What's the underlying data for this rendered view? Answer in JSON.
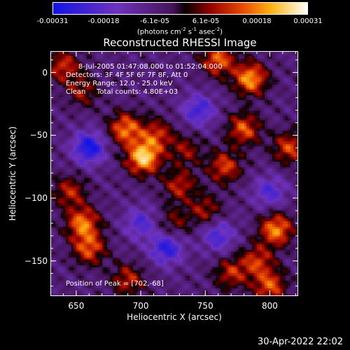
{
  "colorbar": {
    "ticks": [
      "-0.00031",
      "-0.00018",
      "-6.1e-05",
      "6.1e-05",
      "0.00018",
      "0.00031"
    ],
    "units": {
      "base": "(photons cm",
      "exp1": "-2",
      "mid": " s",
      "exp2": "-1",
      "mid2": " asec",
      "exp3": "-2",
      "end": ")"
    }
  },
  "chart_data": {
    "type": "heatmap",
    "title": "Reconstructed RHESSI Image",
    "xlabel": "Heliocentric X (arcsec)",
    "ylabel": "Heliocentric Y (arcsec)",
    "xlim": [
      630,
      822
    ],
    "ylim": [
      -178,
      17
    ],
    "x_ticks": [
      650,
      700,
      750,
      800
    ],
    "y_ticks": [
      0,
      -50,
      -100,
      -150
    ],
    "x_tick_labels": [
      "650",
      "700",
      "750",
      "800"
    ],
    "y_tick_labels": [
      "0",
      "−50",
      "−100",
      "−150"
    ],
    "color_range": [
      -0.00031,
      0.00031
    ],
    "colormap": "blue-purple-black-red-yellow-white",
    "peak": [
      702,
      -68
    ],
    "sources": [
      {
        "x": 702,
        "y": -68,
        "amp": 1.0
      },
      {
        "x": 688,
        "y": -45,
        "amp": 0.75
      },
      {
        "x": 712,
        "y": -50,
        "amp": 0.55
      },
      {
        "x": 655,
        "y": -120,
        "amp": 0.75
      },
      {
        "x": 645,
        "y": -95,
        "amp": 0.5
      },
      {
        "x": 660,
        "y": -140,
        "amp": 0.65
      },
      {
        "x": 690,
        "y": -165,
        "amp": 0.5
      },
      {
        "x": 780,
        "y": -45,
        "amp": 0.65
      },
      {
        "x": 765,
        "y": -75,
        "amp": 0.6
      },
      {
        "x": 785,
        "y": -5,
        "amp": 0.85
      },
      {
        "x": 760,
        "y": 10,
        "amp": 0.7
      },
      {
        "x": 805,
        "y": -125,
        "amp": 0.8
      },
      {
        "x": 790,
        "y": -150,
        "amp": 0.55
      },
      {
        "x": 800,
        "y": -170,
        "amp": 0.65
      },
      {
        "x": 730,
        "y": -90,
        "amp": 0.5
      },
      {
        "x": 735,
        "y": -62,
        "amp": 0.4
      },
      {
        "x": 750,
        "y": -110,
        "amp": 0.45
      },
      {
        "x": 725,
        "y": -120,
        "amp": 0.35
      },
      {
        "x": 640,
        "y": 5,
        "amp": 0.55
      },
      {
        "x": 655,
        "y": -15,
        "amp": 0.4
      },
      {
        "x": 815,
        "y": -60,
        "amp": 0.6
      },
      {
        "x": 770,
        "y": -160,
        "amp": 0.5
      },
      {
        "x": 660,
        "y": -60,
        "amp": -0.8
      },
      {
        "x": 720,
        "y": -140,
        "amp": -0.7
      },
      {
        "x": 745,
        "y": -30,
        "amp": -0.6
      },
      {
        "x": 700,
        "y": -120,
        "amp": -0.5
      },
      {
        "x": 760,
        "y": -130,
        "amp": -0.55
      },
      {
        "x": 800,
        "y": -95,
        "amp": -0.5
      }
    ]
  },
  "info": {
    "line1": "8-Jul-2005 01:47:08.000 to 01:52:04.000",
    "line2": "Detectors: 3F 4F 5F 6F 7F 8F, Att 0",
    "line3": "Energy Range: 12.0 - 25.0 keV",
    "line4_a": "Clean",
    "line4_b": "Total counts: 4.80E+03",
    "peak": "Position of Peak = [702,-68]"
  },
  "timestamp": "30-Apr-2022 22:02"
}
